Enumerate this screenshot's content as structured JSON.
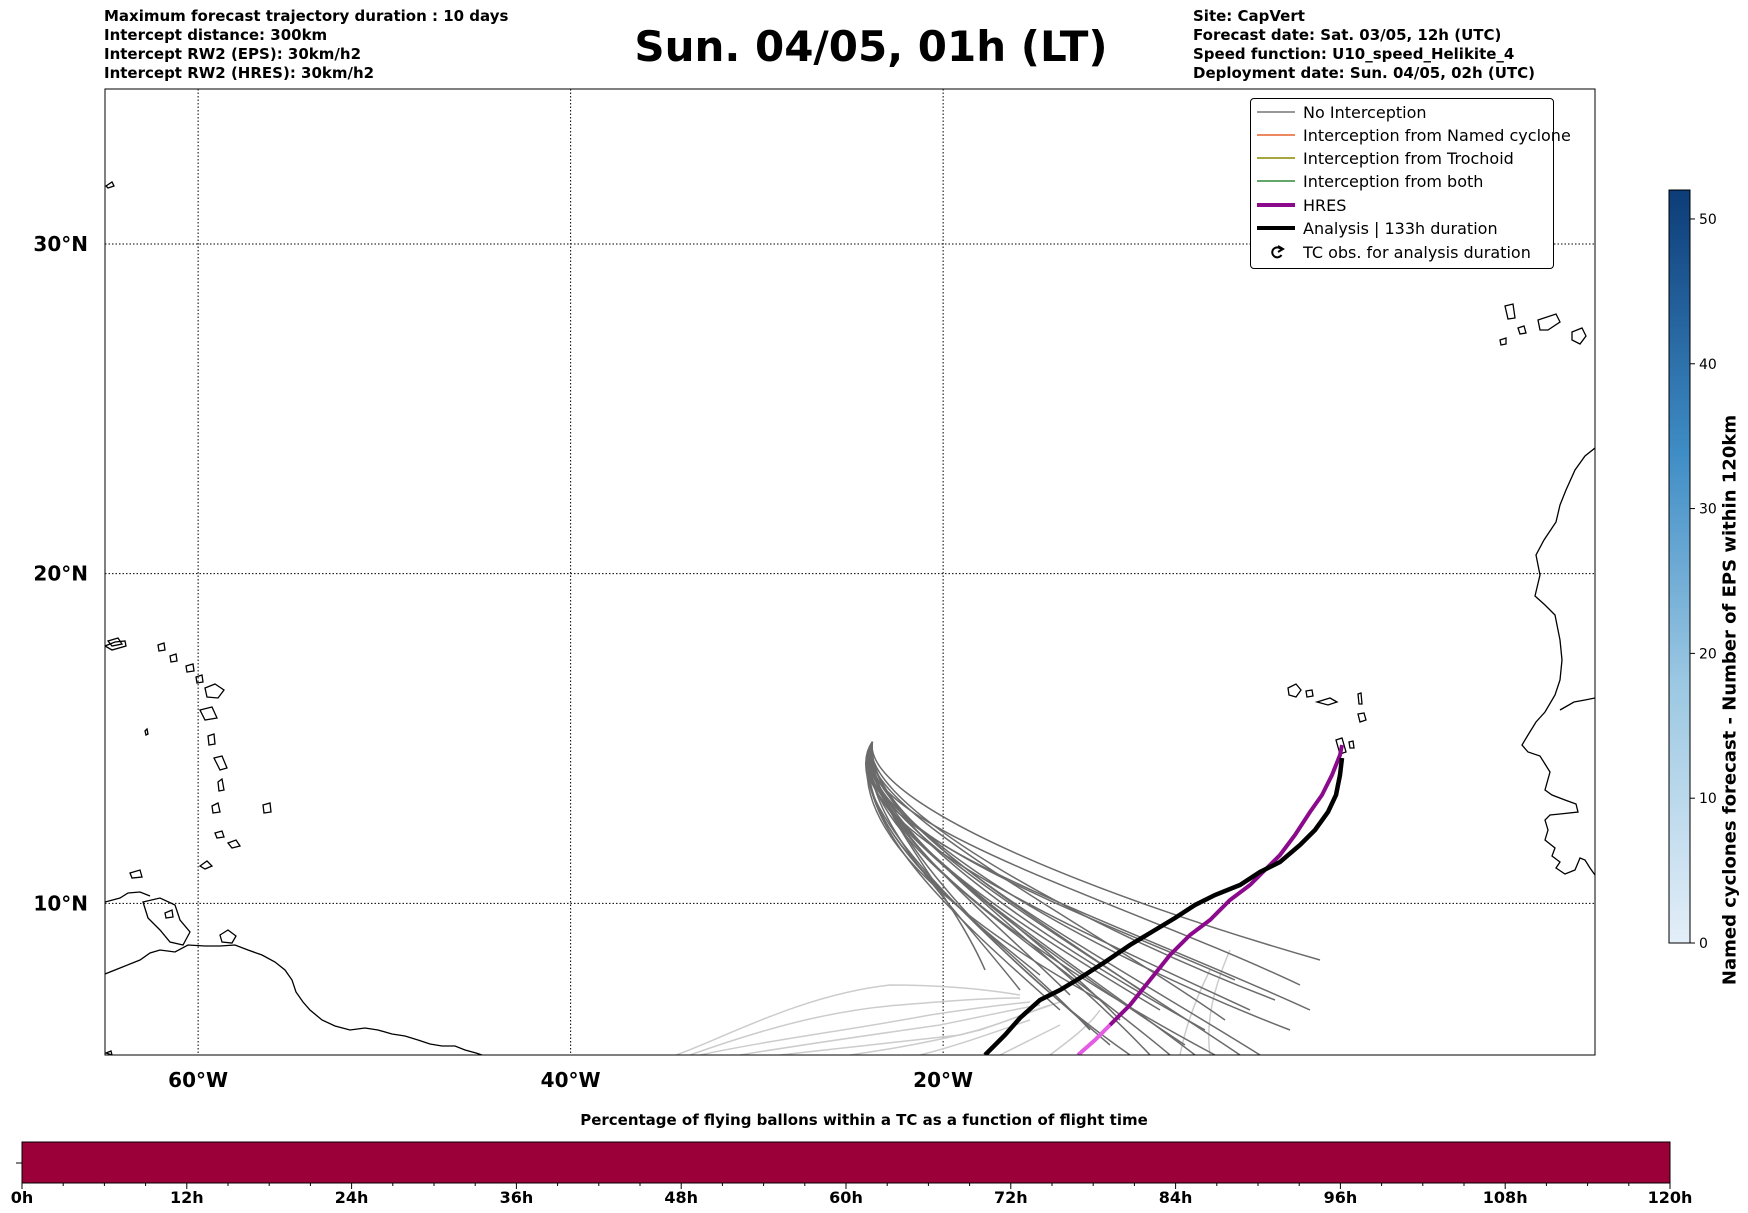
{
  "header_left": {
    "line1": "Maximum forecast trajectory duration : 10 days",
    "line2": "Intercept distance: 300km",
    "line3": "Intercept RW2 (EPS):  30km/h2",
    "line4": "Intercept RW2 (HRES): 30km/h2"
  },
  "header_right": {
    "line1": "Site: CapVert",
    "line2": "Forecast date: Sat. 03/05, 12h (UTC)",
    "line3": "Speed function: U10_speed_Helikite_4",
    "line4": "Deployment date: Sun. 04/05, 02h (UTC)"
  },
  "title": "Sun. 04/05, 01h (LT)",
  "map": {
    "lon_range": [
      -65,
      15
    ],
    "lat_range": [
      5.4,
      34.7
    ],
    "lon_ticks": [
      {
        "value": -60,
        "label": "60°W"
      },
      {
        "value": -40,
        "label": "40°W"
      },
      {
        "value": -20,
        "label": "20°W"
      }
    ],
    "lat_ticks": [
      {
        "value": 30,
        "label": "30°N"
      },
      {
        "value": 20,
        "label": "20°N"
      },
      {
        "value": 10,
        "label": "10°N"
      }
    ],
    "deployment_site": {
      "lon": -23.8,
      "lat": 14.9
    }
  },
  "legend": {
    "items": [
      {
        "label": "No Interception",
        "color": "#777777",
        "style": "thin"
      },
      {
        "label": "Interception from Named cyclone",
        "color": "#e8602c",
        "style": "thin"
      },
      {
        "label": "Interception from Trochoid",
        "color": "#8a8a00",
        "style": "thin"
      },
      {
        "label": "Interception from both",
        "color": "#2e8b3a",
        "style": "thin"
      },
      {
        "label": "HRES",
        "color": "#8b0a8b",
        "style": "thick"
      },
      {
        "label": "Analysis | 133h duration",
        "color": "#000000",
        "style": "thick"
      },
      {
        "label": "TC obs. for analysis duration",
        "color": "#000000",
        "style": "marker"
      }
    ]
  },
  "colorbar": {
    "label": "Named cyclones forecast - Number of EPS within 120km",
    "ticks": [
      0,
      10,
      20,
      30,
      40,
      50
    ],
    "max": 52,
    "color_low": "#e3eef8",
    "color_high": "#0c3c78"
  },
  "bottom_bar": {
    "title": "Percentage of flying ballons within a TC as a function of flight time",
    "color": "#9b0039",
    "ticks": [
      "0h",
      "12h",
      "24h",
      "36h",
      "48h",
      "60h",
      "72h",
      "84h",
      "96h",
      "108h",
      "120h"
    ]
  }
}
